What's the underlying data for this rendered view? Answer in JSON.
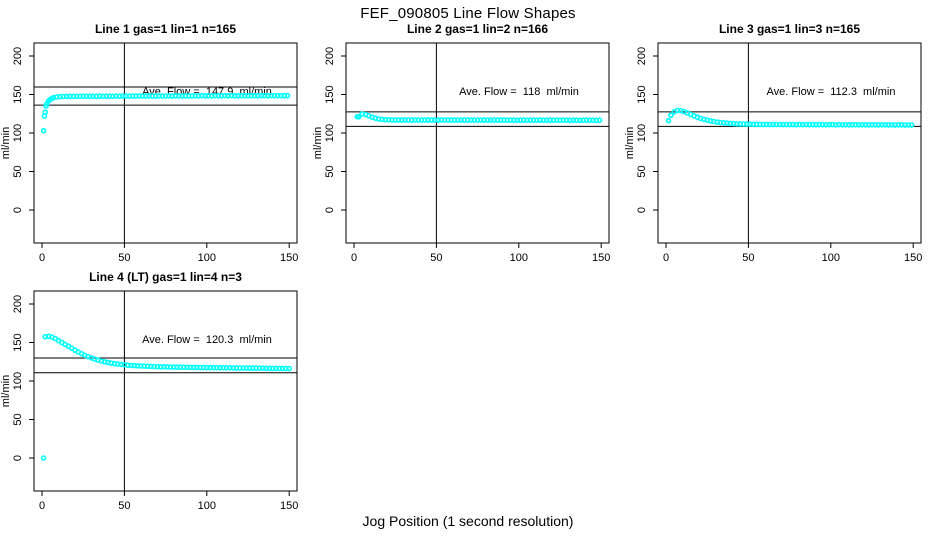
{
  "title": "FEF_090805  Line Flow Shapes",
  "xlabel": "Jog Position (1 second resolution)",
  "chart_data": {
    "type": "scatter",
    "ylabel": "ml/min",
    "xlim": [
      0,
      150
    ],
    "ylim": [
      0,
      200
    ],
    "x_ticks": [
      0,
      50,
      100,
      150
    ],
    "y_ticks": [
      0,
      50,
      100,
      150,
      200
    ],
    "grid": false,
    "legend": "none",
    "vline_x": 50,
    "marker": {
      "shape": "open-circle",
      "color": "#00FFFF"
    },
    "axis_color": "#000000",
    "panels": [
      {
        "title": "Line 1 gas=1 lin=1 n=165",
        "n": 165,
        "ave_flow": 147.9,
        "ave_flow_label": "Ave. Flow =  147.9  ml/min",
        "ref_lines": [
          136.2,
          159.8
        ],
        "series_x_start": 3,
        "series_x_step": 2,
        "series_y": [
          138,
          143.5,
          145.8,
          146.8,
          147.2,
          147.4,
          147.5,
          147.6,
          147.5,
          147.7,
          147.6,
          147.8,
          147.6,
          147.7,
          147.8,
          147.6,
          147.9,
          147.7,
          147.8,
          147.9,
          147.7,
          148,
          147.8,
          147.9,
          148,
          147.8,
          148.1,
          147.9,
          148,
          148.1,
          147.9,
          148.2,
          148,
          148.1,
          148.2,
          148,
          148.1,
          148.2,
          148.1,
          148.3,
          148.1,
          148.2,
          148.3,
          148.1,
          148.2,
          148.3,
          148.2,
          148.4,
          148.2,
          148.3,
          148.2,
          148.4,
          148.3,
          148.2,
          148.4,
          148.3,
          148.4,
          148.2,
          148.3,
          148.4,
          148.3,
          148.5,
          148.3,
          148.4,
          148.3,
          148.5,
          148.4,
          148.3,
          148.5,
          148.4,
          148.5,
          148.3,
          148.4,
          148.5
        ],
        "outliers": [
          [
            1,
            103
          ],
          [
            1.5,
            122
          ],
          [
            2,
            127
          ],
          [
            2.5,
            135
          ],
          [
            4,
            141.5
          ],
          [
            6,
            144.8
          ]
        ]
      },
      {
        "title": "Line 2 gas=1 lin=2 n=166",
        "n": 166,
        "ave_flow": 118,
        "ave_flow_label": "Ave. Flow =  118  ml/min",
        "ref_lines": [
          108.6,
          127.4
        ],
        "series_x_start": 3,
        "series_x_step": 2,
        "series_y": [
          121,
          124.8,
          124,
          122.3,
          120.6,
          119.2,
          118.2,
          117.6,
          117.3,
          117.1,
          117,
          116.9,
          117,
          116.8,
          117,
          116.9,
          116.8,
          117,
          116.9,
          116.8,
          116.9,
          117,
          116.8,
          116.9,
          116.8,
          117,
          116.9,
          116.8,
          116.9,
          116.7,
          116.9,
          116.8,
          116.7,
          116.9,
          116.8,
          116.7,
          116.8,
          116.9,
          116.7,
          116.8,
          116.7,
          116.9,
          116.8,
          116.7,
          116.8,
          116.6,
          116.8,
          116.7,
          116.6,
          116.8,
          116.7,
          116.6,
          116.7,
          116.8,
          116.6,
          116.7,
          116.6,
          116.8,
          116.7,
          116.6,
          116.7,
          116.5,
          116.7,
          116.6,
          116.5,
          116.7,
          116.6,
          116.5,
          116.6,
          116.7,
          116.5,
          116.6,
          116.5,
          116.6
        ],
        "outliers": [
          [
            2,
            121
          ]
        ]
      },
      {
        "title": "Line 3 gas=1 lin=3 n=165",
        "n": 165,
        "ave_flow": 112.3,
        "ave_flow_label": "Ave. Flow =  112.3  ml/min",
        "ref_lines": [
          108.6,
          127.4
        ],
        "series_x_start": 3,
        "series_x_step": 2,
        "series_y": [
          123,
          127.5,
          129.3,
          129,
          127.8,
          126,
          124,
          122.2,
          120.5,
          119,
          117.7,
          116.6,
          115.7,
          114.9,
          114.2,
          113.7,
          113.2,
          112.8,
          112.5,
          112.2,
          112,
          111.8,
          111.7,
          111.5,
          111.4,
          111.3,
          111.3,
          111.2,
          111.1,
          111.2,
          111,
          111.1,
          111,
          111.1,
          110.9,
          111,
          110.9,
          111,
          110.8,
          110.9,
          110.8,
          111,
          110.8,
          110.9,
          110.7,
          110.9,
          110.8,
          110.7,
          110.8,
          110.9,
          110.7,
          110.8,
          110.6,
          110.8,
          110.7,
          110.6,
          110.8,
          110.7,
          110.6,
          110.7,
          110.5,
          110.7,
          110.6,
          110.5,
          110.7,
          110.6,
          110.5,
          110.6,
          110.4,
          110.6,
          110.5,
          110.4,
          110.5,
          110.4
        ],
        "outliers": [
          [
            1.5,
            116
          ]
        ]
      },
      {
        "title": "Line 4 (LT) gas=1 lin=4 n=3",
        "n": 3,
        "ave_flow": 120.3,
        "ave_flow_label": "Ave. Flow =  120.3  ml/min",
        "ref_lines": [
          110.7,
          129.9
        ],
        "series_x_start": 2,
        "series_x_step": 2,
        "series_y": [
          157.5,
          158,
          157,
          155,
          152.5,
          150,
          147.5,
          145,
          142.5,
          140,
          137.6,
          135.4,
          133.4,
          131.6,
          130,
          128.5,
          127.2,
          126,
          125,
          124.1,
          123.3,
          122.6,
          122,
          121.5,
          121,
          120.6,
          120.3,
          120,
          119.7,
          119.5,
          119.3,
          119.1,
          118.9,
          118.8,
          118.6,
          118.5,
          118.4,
          118.3,
          118.2,
          118.1,
          118,
          117.9,
          117.9,
          117.8,
          117.7,
          117.7,
          117.6,
          117.5,
          117.5,
          117.4,
          117.4,
          117.3,
          117.3,
          117.2,
          117.2,
          117.1,
          117.1,
          117,
          117,
          116.9,
          116.9,
          116.8,
          116.8,
          116.7,
          116.7,
          116.6,
          116.6,
          116.5,
          116.5,
          116.4,
          116.4,
          116.3,
          116.3,
          116.2,
          116.2
        ],
        "outliers": [
          [
            1,
            0
          ]
        ]
      }
    ]
  }
}
